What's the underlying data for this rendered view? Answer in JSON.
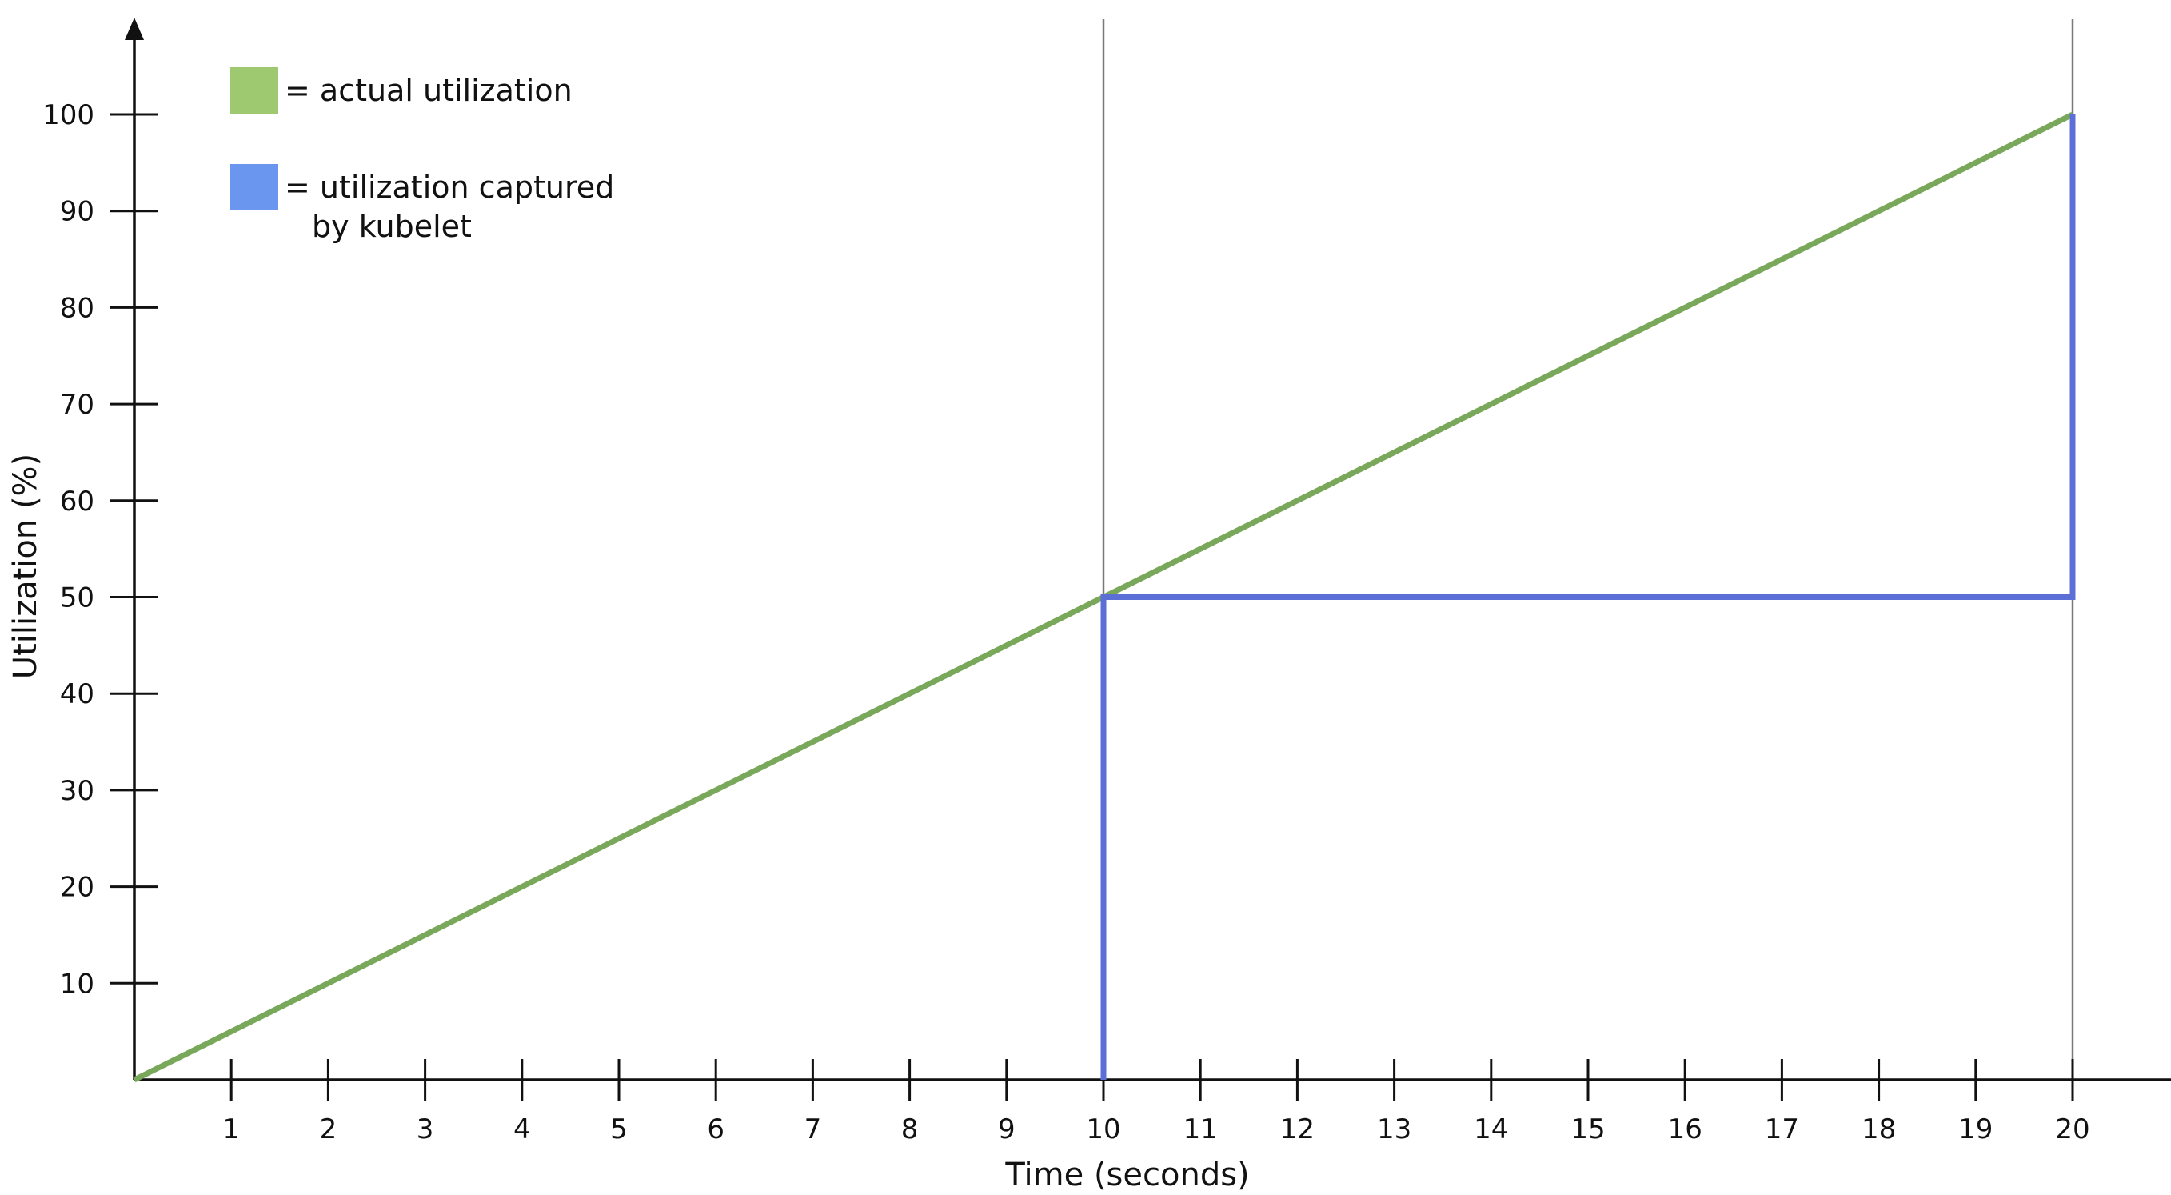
{
  "chart_data": {
    "type": "line",
    "xlabel": "Time (seconds)",
    "ylabel": "Utilization (%)",
    "xlim": [
      0,
      21.8
    ],
    "ylim": [
      0,
      110
    ],
    "x_ticks": [
      1,
      2,
      3,
      4,
      5,
      6,
      7,
      8,
      9,
      10,
      11,
      12,
      13,
      14,
      15,
      16,
      17,
      18,
      19,
      20
    ],
    "y_ticks": [
      10,
      20,
      30,
      40,
      50,
      60,
      70,
      80,
      90,
      100
    ],
    "grid": false,
    "vertical_reference_lines": [
      10,
      20
    ],
    "legend": {
      "placement": "top-left",
      "entries": [
        {
          "symbol_color": "#9ec971",
          "lines": [
            "= actual utilization"
          ]
        },
        {
          "symbol_color": "#6b96f0",
          "lines": [
            "= utilization captured",
            "by kubelet"
          ]
        }
      ]
    },
    "series": [
      {
        "name": "actual utilization",
        "color": "#79a85a",
        "x": [
          0,
          20
        ],
        "y": [
          0,
          100
        ]
      },
      {
        "name": "utilization captured by kubelet",
        "color": "#5c6fd6",
        "x": [
          10,
          10,
          20,
          20
        ],
        "y": [
          0,
          50,
          50,
          100
        ]
      }
    ]
  }
}
